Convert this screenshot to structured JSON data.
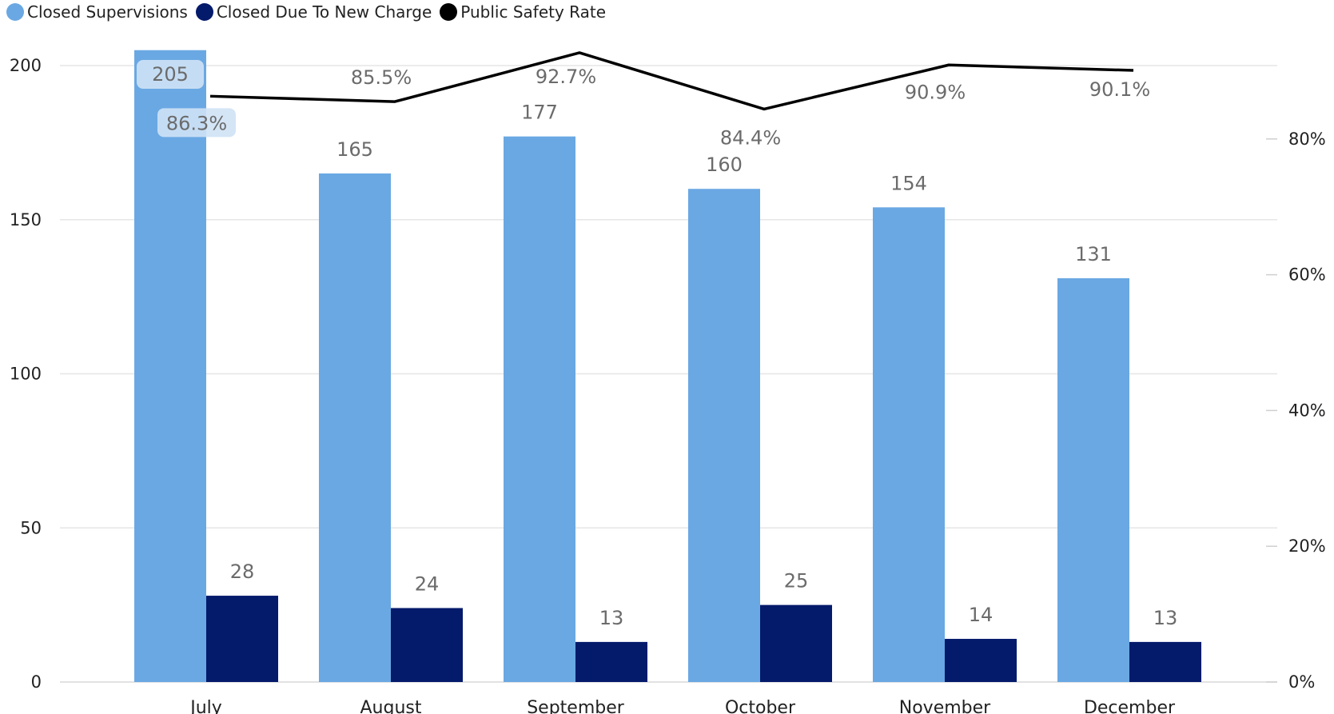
{
  "legend": [
    {
      "label": "Closed Supervisions",
      "color": "#6aa8e3"
    },
    {
      "label": "Closed Due To New Charge",
      "color": "#041a6b"
    },
    {
      "label": "Public Safety Rate",
      "color": "#000000"
    }
  ],
  "chart_data": {
    "type": "bar",
    "categories": [
      "July",
      "August",
      "September",
      "October",
      "November",
      "December"
    ],
    "series": [
      {
        "name": "Closed Supervisions",
        "kind": "bar",
        "axis": "left",
        "color": "#6aa8e3",
        "values": [
          205,
          165,
          177,
          160,
          154,
          131
        ],
        "labels": [
          "205",
          "165",
          "177",
          "160",
          "154",
          "131"
        ]
      },
      {
        "name": "Closed Due To New Charge",
        "kind": "bar",
        "axis": "left",
        "color": "#041a6b",
        "values": [
          28,
          24,
          13,
          25,
          14,
          13
        ],
        "labels": [
          "28",
          "24",
          "13",
          "25",
          "14",
          "13"
        ]
      },
      {
        "name": "Public Safety Rate",
        "kind": "line",
        "axis": "right",
        "color": "#000000",
        "values": [
          86.3,
          85.5,
          92.7,
          84.4,
          90.9,
          90.1
        ],
        "labels": [
          "86.3%",
          "85.5%",
          "92.7%",
          "84.4%",
          "90.9%",
          "90.1%"
        ]
      }
    ],
    "y_left": {
      "ylim": [
        0,
        200
      ],
      "ticks": [
        "0",
        "50",
        "100",
        "150",
        "200"
      ]
    },
    "y_right": {
      "ylim": [
        0,
        100
      ],
      "ticks": [
        "0%",
        "20%",
        "40%",
        "60%",
        "80%"
      ]
    },
    "grid": true,
    "legend_position": "top-left"
  }
}
